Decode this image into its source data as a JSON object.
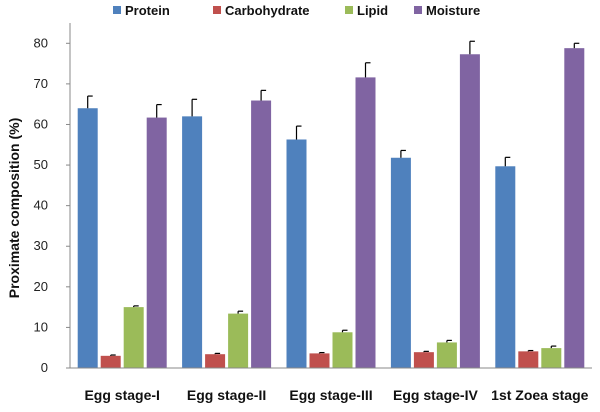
{
  "chart_data": {
    "type": "bar",
    "title": "",
    "xlabel": "",
    "ylabel": "Proximate composition (%)",
    "ylim": [
      0,
      85
    ],
    "yticks": [
      0,
      10,
      20,
      30,
      40,
      50,
      60,
      70,
      80
    ],
    "grid": false,
    "legend_position": "top",
    "categories": [
      "Egg stage-I",
      "Egg stage-II",
      "Egg stage-III",
      "Egg stage-IV",
      "1st Zoea stage"
    ],
    "series": [
      {
        "name": "Protein",
        "color": "#4f81bd",
        "values": [
          64.0,
          62.0,
          56.3,
          51.8,
          49.7
        ],
        "errors": [
          3.0,
          4.2,
          3.3,
          1.8,
          2.2
        ]
      },
      {
        "name": "Carbohydrate",
        "color": "#c0504d",
        "values": [
          3.0,
          3.4,
          3.6,
          3.9,
          4.1
        ],
        "errors": [
          0.2,
          0.2,
          0.2,
          0.2,
          0.2
        ]
      },
      {
        "name": "Lipid",
        "color": "#9bbb59",
        "values": [
          15.0,
          13.4,
          8.8,
          6.3,
          4.9
        ],
        "errors": [
          0.3,
          0.6,
          0.5,
          0.5,
          0.5
        ]
      },
      {
        "name": "Moisture",
        "color": "#8064a2",
        "values": [
          61.7,
          65.9,
          71.6,
          77.3,
          78.8
        ],
        "errors": [
          3.2,
          2.5,
          3.6,
          3.2,
          1.2
        ]
      }
    ]
  }
}
